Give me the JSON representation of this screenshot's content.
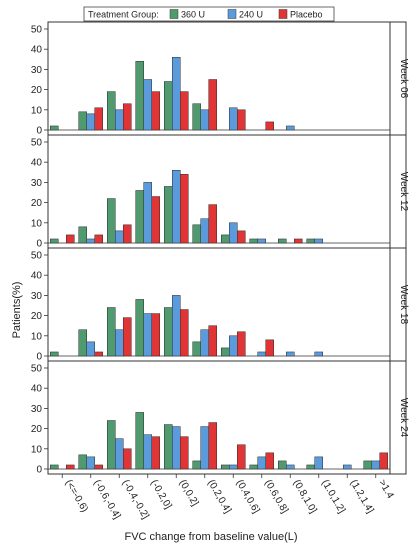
{
  "chart_data": {
    "type": "bar",
    "legend": {
      "title": "Treatment Group:",
      "placement": "top"
    },
    "xlabel": "FVC change from baseline value(L)",
    "ylabel": "Patients(%)",
    "ylim": [
      0,
      50
    ],
    "yticks": [
      "0",
      "10",
      "20",
      "30",
      "40",
      "50"
    ],
    "grid": false,
    "categories": [
      "(<=-0.6)",
      "(-0.6,-0.4]",
      "(-0.4,-0.2]",
      "(-0.2,0]",
      "(0,0.2]",
      "(0.2,0.4]",
      "(0.4,0.6]",
      "(0.6,0.8]",
      "(0.8,1.0]",
      "(1.0,1.2]",
      "(1.2,1.4]",
      ">1.4"
    ],
    "series_meta": [
      {
        "name": "360 U",
        "color": "#4f9a6f"
      },
      {
        "name": "240 U",
        "color": "#5b9bdc"
      },
      {
        "name": "Placebo",
        "color": "#e13535"
      }
    ],
    "panels": [
      {
        "label": "Week 06",
        "values": [
          [
            2,
            9,
            19,
            34,
            24,
            13,
            0,
            0,
            0,
            0,
            0,
            0
          ],
          [
            0,
            8,
            10,
            25,
            36,
            10,
            11,
            0,
            2,
            0,
            0,
            0
          ],
          [
            0,
            11,
            13,
            19,
            19,
            25,
            10,
            4,
            0,
            0,
            0,
            0
          ]
        ]
      },
      {
        "label": "Week 12",
        "values": [
          [
            2,
            8,
            22,
            26,
            28,
            9,
            4,
            2,
            2,
            2,
            0,
            0
          ],
          [
            0,
            2,
            6,
            30,
            36,
            12,
            10,
            2,
            0,
            2,
            0,
            0
          ],
          [
            4,
            4,
            9,
            23,
            34,
            19,
            6,
            0,
            2,
            0,
            0,
            0
          ]
        ]
      },
      {
        "label": "Week 18",
        "values": [
          [
            2,
            13,
            24,
            28,
            24,
            7,
            4,
            0,
            0,
            0,
            0,
            0
          ],
          [
            0,
            7,
            13,
            21,
            30,
            13,
            10,
            2,
            2,
            2,
            0,
            0
          ],
          [
            0,
            2,
            19,
            21,
            23,
            15,
            12,
            8,
            0,
            0,
            0,
            0
          ]
        ]
      },
      {
        "label": "Week 24",
        "values": [
          [
            2,
            7,
            24,
            28,
            22,
            4,
            2,
            2,
            4,
            2,
            0,
            4
          ],
          [
            0,
            6,
            15,
            17,
            21,
            21,
            2,
            6,
            2,
            6,
            2,
            4
          ],
          [
            2,
            2,
            10,
            16,
            16,
            23,
            12,
            8,
            0,
            0,
            0,
            8
          ]
        ]
      }
    ]
  }
}
